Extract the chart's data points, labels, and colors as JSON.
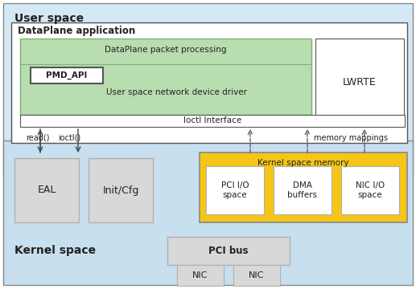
{
  "blue_bg": "#d4e8f5",
  "blue_bg2": "#c8dff0",
  "white": "#ffffff",
  "green": "#b8ddb0",
  "green_dark_border": "#7ab570",
  "yellow": "#f5c518",
  "gray_box": "#c8c8c8",
  "gray_light": "#d8d8d8",
  "gray_mid": "#b0b0b0",
  "border_dark": "#555555",
  "border_mid": "#888888",
  "user_space_label": "User space",
  "kernel_space_label": "Kernel space",
  "dataplane_app_label": "DataPlane application",
  "dp_packet_label": "DataPlane packet processing",
  "pmd_api_label": "PMD_API",
  "usndd_label": "User space network device driver",
  "ioctl_iface_label": "Ioctl Interface",
  "lwrte_label": "LWRTE",
  "eal_label": "EAL",
  "initcfg_label": "Init/Cfg",
  "ksm_label": "Kernel space memory",
  "pci_io_label": "PCI I/O\nspace",
  "dma_label": "DMA\nbuffers",
  "nic_io_label": "NIC I/O\nspace",
  "pci_bus_label": "PCI bus",
  "nic1_label": "NIC",
  "nic2_label": "NIC",
  "read_label": "read()",
  "ioctl_label": "ioctl()",
  "mem_map_label": "memory mappings"
}
